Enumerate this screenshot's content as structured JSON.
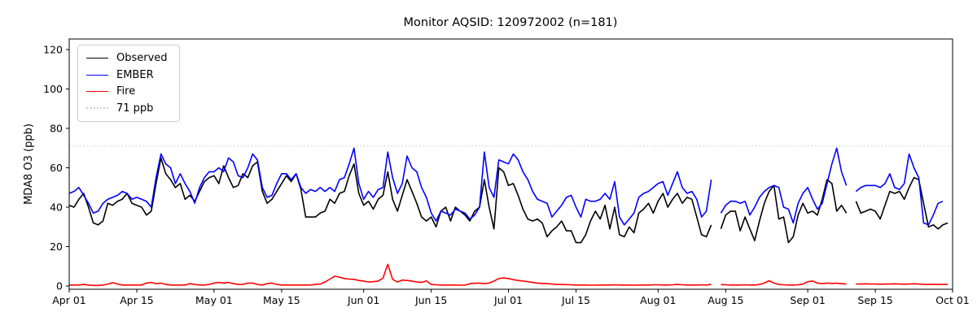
{
  "chart_data": {
    "type": "line",
    "title": "Monitor AQSID: 120972002 (n=181)",
    "ylabel": "MDA8 O3 (ppb)",
    "xlabel": "",
    "ylim": [
      0,
      125
    ],
    "yticks": [
      0,
      20,
      40,
      60,
      80,
      100,
      120
    ],
    "grid": false,
    "x_axis": {
      "total_days": 183,
      "start_label": "Apr 01",
      "end_label": "Oct 01",
      "ticks": [
        {
          "day": 0,
          "label": "Apr 01"
        },
        {
          "day": 14,
          "label": "Apr 15"
        },
        {
          "day": 30,
          "label": "May 01"
        },
        {
          "day": 44,
          "label": "May 15"
        },
        {
          "day": 61,
          "label": "Jun 01"
        },
        {
          "day": 75,
          "label": "Jun 15"
        },
        {
          "day": 91,
          "label": "Jul 01"
        },
        {
          "day": 105,
          "label": "Jul 15"
        },
        {
          "day": 122,
          "label": "Aug 01"
        },
        {
          "day": 136,
          "label": "Aug 15"
        },
        {
          "day": 153,
          "label": "Sep 01"
        },
        {
          "day": 167,
          "label": "Sep 15"
        },
        {
          "day": 183,
          "label": "Oct 01"
        }
      ]
    },
    "threshold": {
      "value": 71,
      "label": "71 ppb",
      "color": "#cdcdcd",
      "style": "dotted"
    },
    "legend_position": "upper left",
    "series": [
      {
        "name": "Observed",
        "color": "#000000",
        "values": [
          41,
          40,
          44,
          47,
          40,
          32,
          31,
          33,
          42,
          41,
          43,
          44,
          47,
          42,
          41,
          40,
          36,
          38,
          52,
          65,
          57,
          54,
          50,
          52,
          44,
          46,
          43,
          48,
          53,
          55,
          56,
          52,
          61,
          55,
          50,
          51,
          57,
          55,
          61,
          63,
          48,
          42,
          44,
          48,
          52,
          56,
          53,
          57,
          49,
          35,
          35,
          35,
          37,
          38,
          44,
          42,
          47,
          48,
          56,
          62,
          47,
          41,
          43,
          39,
          44,
          46,
          58,
          44,
          38,
          46,
          54,
          48,
          42,
          35,
          33,
          35,
          30,
          38,
          40,
          33,
          40,
          38,
          36,
          33,
          38,
          40,
          54,
          40,
          29,
          60,
          58,
          51,
          52,
          46,
          39,
          34,
          33,
          34,
          32,
          25,
          28,
          30,
          33,
          28,
          28,
          22,
          22,
          26,
          33,
          38,
          34,
          41,
          29,
          40,
          26,
          25,
          30,
          27,
          37,
          39,
          42,
          37,
          43,
          47,
          40,
          44,
          47,
          42,
          45,
          44,
          35,
          26,
          25,
          31,
          null,
          29,
          36,
          38,
          38,
          28,
          35,
          29,
          23,
          33,
          42,
          48,
          51,
          34,
          35,
          22,
          25,
          36,
          42,
          37,
          38,
          36,
          44,
          54,
          52,
          38,
          41,
          37,
          null,
          43,
          37,
          38,
          39,
          38,
          34,
          41,
          48,
          47,
          48,
          44,
          50,
          55,
          54,
          42,
          30,
          31,
          29,
          31,
          32
        ]
      },
      {
        "name": "EMBER",
        "color": "#0000ff",
        "values": [
          47,
          48,
          50,
          46,
          42,
          37,
          38,
          42,
          44,
          45,
          46,
          48,
          47,
          44,
          45,
          44,
          43,
          40,
          55,
          67,
          62,
          60,
          52,
          57,
          52,
          48,
          42,
          50,
          55,
          58,
          58,
          60,
          58,
          65,
          63,
          56,
          55,
          60,
          67,
          64,
          50,
          45,
          46,
          52,
          57,
          57,
          54,
          57,
          50,
          47,
          49,
          48,
          50,
          48,
          50,
          48,
          54,
          55,
          62,
          70,
          52,
          44,
          48,
          45,
          49,
          50,
          68,
          55,
          47,
          52,
          66,
          60,
          58,
          50,
          45,
          37,
          33,
          38,
          37,
          36,
          39,
          38,
          37,
          34,
          36,
          40,
          68,
          50,
          45,
          64,
          63,
          62,
          67,
          64,
          58,
          54,
          48,
          44,
          43,
          42,
          35,
          38,
          41,
          45,
          46,
          40,
          35,
          44,
          43,
          43,
          44,
          47,
          44,
          53,
          35,
          31,
          34,
          37,
          45,
          47,
          48,
          50,
          52,
          53,
          46,
          52,
          58,
          50,
          47,
          48,
          44,
          35,
          38,
          54,
          null,
          37,
          41,
          43,
          43,
          42,
          43,
          36,
          40,
          45,
          48,
          50,
          51,
          50,
          40,
          39,
          32,
          42,
          47,
          50,
          44,
          39,
          42,
          52,
          62,
          70,
          58,
          51,
          null,
          48,
          50,
          51,
          51,
          51,
          50,
          52,
          57,
          50,
          49,
          52,
          67,
          60,
          55,
          32,
          31,
          36,
          42,
          43,
          null
        ]
      },
      {
        "name": "Fire",
        "color": "#ff0000",
        "values": [
          0.5,
          0.5,
          0.5,
          0.8,
          0.5,
          0.3,
          0.3,
          0.5,
          1,
          1.7,
          1,
          0.5,
          0.5,
          0.5,
          0.5,
          0.5,
          1.5,
          1.8,
          1.2,
          1.5,
          0.8,
          0.5,
          0.5,
          0.5,
          0.5,
          1.2,
          0.8,
          0.5,
          0.5,
          0.8,
          1.5,
          1.8,
          1.5,
          1.8,
          1.2,
          0.8,
          0.8,
          1.5,
          1.5,
          0.8,
          0.5,
          1.2,
          1.5,
          0.8,
          0.5,
          0.5,
          0.5,
          0.5,
          0.5,
          0.5,
          0.5,
          0.8,
          1,
          2,
          3.5,
          5,
          4.5,
          3.8,
          3.5,
          3.4,
          2.8,
          2.5,
          2,
          2.2,
          2.5,
          4,
          11,
          3.4,
          2,
          3,
          2.8,
          2.5,
          2,
          1.8,
          2.6,
          0.8,
          0.6,
          0.5,
          0.5,
          0.5,
          0.5,
          0.4,
          0.4,
          1.2,
          1.4,
          1.4,
          1.2,
          1.5,
          2.5,
          3.8,
          4.1,
          3.8,
          3.2,
          2.8,
          2.5,
          2.2,
          1.8,
          1.5,
          1.3,
          1.2,
          1,
          0.8,
          0.8,
          0.7,
          0.6,
          0.5,
          0.5,
          0.5,
          0.4,
          0.4,
          0.5,
          0.5,
          0.5,
          0.6,
          0.5,
          0.5,
          0.5,
          0.4,
          0.5,
          0.5,
          0.5,
          0.6,
          0.6,
          0.5,
          0.5,
          0.6,
          0.8,
          0.6,
          0.5,
          0.5,
          0.5,
          0.6,
          0.5,
          0.8,
          null,
          0.7,
          0.6,
          0.5,
          0.5,
          0.5,
          0.6,
          0.5,
          0.5,
          0.8,
          1.5,
          2.7,
          1.5,
          0.8,
          0.6,
          0.5,
          0.5,
          0.6,
          1,
          2.2,
          2.5,
          1.5,
          1.2,
          1.5,
          1.3,
          1.4,
          1.2,
          1,
          null,
          1,
          1,
          1.1,
          1,
          1,
          0.9,
          1,
          1,
          1.1,
          1,
          0.9,
          1,
          1.1,
          1,
          0.8,
          0.8,
          0.9,
          0.8,
          0.8,
          0.8
        ]
      }
    ]
  }
}
